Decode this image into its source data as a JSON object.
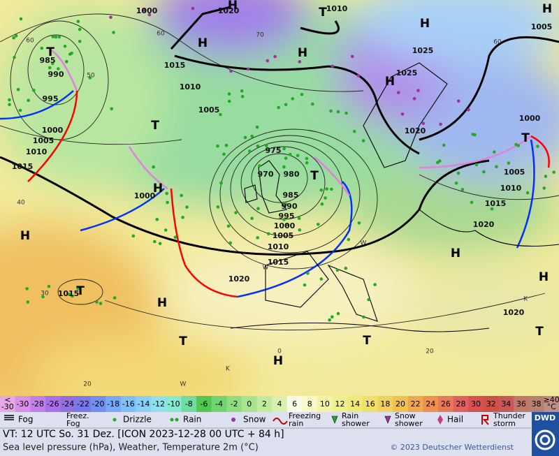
{
  "map": {
    "pressure_labels": [
      "1000",
      "1020",
      "1010",
      "1005",
      "985",
      "990",
      "1015",
      "1010",
      "1025",
      "1025",
      "995",
      "1005",
      "1000",
      "1005",
      "1010",
      "1015",
      "975",
      "970",
      "980",
      "985",
      "990",
      "995",
      "1000",
      "1005",
      "1010",
      "1015",
      "1000",
      "1020",
      "1015",
      "1000",
      "1005",
      "1010",
      "1015",
      "1020",
      "1020",
      "1020"
    ],
    "centers": [
      "H",
      "H",
      "T",
      "H",
      "H",
      "H",
      "T",
      "H",
      "T",
      "T",
      "H",
      "H",
      "H",
      "T",
      "H",
      "T",
      "T",
      "H",
      "H",
      "T",
      "T"
    ],
    "grid_labels": [
      "70",
      "60",
      "50",
      "40",
      "30",
      "20",
      "0",
      "20",
      "60",
      "60"
    ],
    "region_letters": [
      "W",
      "W",
      "K",
      "K",
      "W"
    ]
  },
  "colorbar": {
    "low": [
      "<",
      "-30"
    ],
    "values": [
      "-30",
      "-28",
      "-26",
      "-24",
      "-22",
      "-20",
      "-18",
      "-16",
      "-14",
      "-12",
      "-10",
      "-8",
      "-6",
      "-4",
      "-2",
      "0",
      "2",
      "4",
      "6",
      "8",
      "10",
      "12",
      "14",
      "16",
      "18",
      "20",
      "22",
      "24",
      "26",
      "28",
      "30",
      "32",
      "34",
      "36",
      "38"
    ],
    "high": [
      "≥40",
      "°C"
    ]
  },
  "legend": [
    [
      "Fog"
    ],
    [
      "Freez.",
      "Fog"
    ],
    [
      "Drizzle"
    ],
    [
      "Rain"
    ],
    [
      "Snow"
    ],
    [
      "Freezing",
      "rain"
    ],
    [
      "Rain",
      "shower"
    ],
    [
      "Snow",
      "shower"
    ],
    [
      "Hail"
    ],
    [
      "Thunder",
      "storm"
    ]
  ],
  "footer": {
    "valid_time": "VT: 12 UTC So.  31 Dez. [ICON 2023-12-28  00 UTC + 84 h]",
    "description": "Sea level pressure (hPa), Weather, Temperature 2m (°C)",
    "copyright": "© 2023 Deutscher Wetterdienst",
    "logo": "DWD"
  }
}
